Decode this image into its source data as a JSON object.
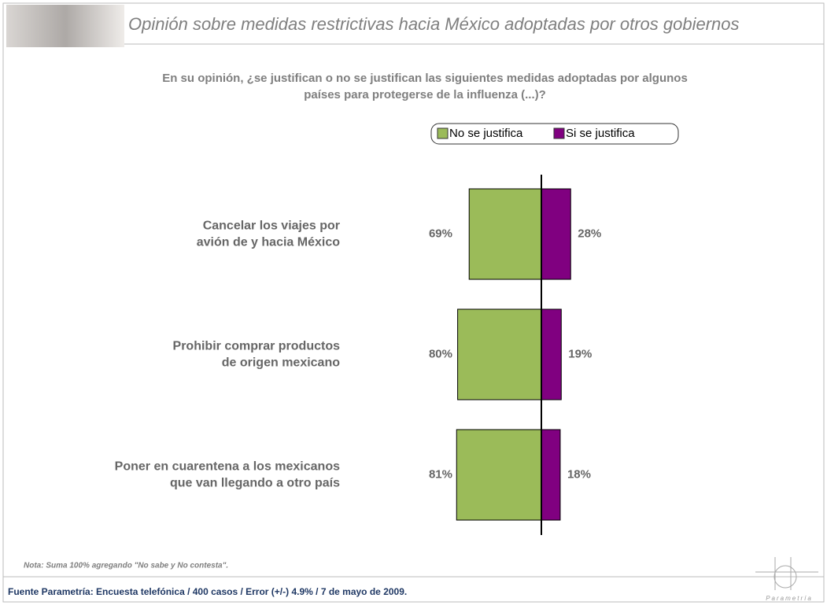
{
  "title": "Opinión sobre medidas restrictivas hacia México adoptadas por otros gobiernos",
  "note": "Nota: Suma 100%  agregando  \"No sabe y No contesta\".",
  "source": "Fuente Parametría: Encuesta telefónica / 400 casos / Error (+/-) 4.9% / 7 de mayo de 2009.",
  "logo": "Parametría",
  "chart_data": {
    "type": "diverging-bar",
    "subtitle": [
      "En su opinión, ¿se justifican o no se justifican las siguientes medidas adoptadas por algunos",
      "países para protegerse de la influenza  (...)?"
    ],
    "categories": [
      [
        "Cancelar los viajes por",
        "avión de y hacia México"
      ],
      [
        "Prohibir comprar productos",
        "de origen mexicano"
      ],
      [
        "Poner en cuarentena a los mexicanos",
        "que van llegando a otro país"
      ]
    ],
    "series": [
      {
        "name": "No se justifica",
        "color": "#9bbb59",
        "values": [
          69,
          80,
          81
        ],
        "value_labels": [
          "69%",
          "80%",
          "81%"
        ]
      },
      {
        "name": "Si se justifica",
        "color": "#800080",
        "values": [
          28,
          19,
          18
        ],
        "value_labels": [
          "28%",
          "19%",
          "18%"
        ]
      }
    ]
  }
}
